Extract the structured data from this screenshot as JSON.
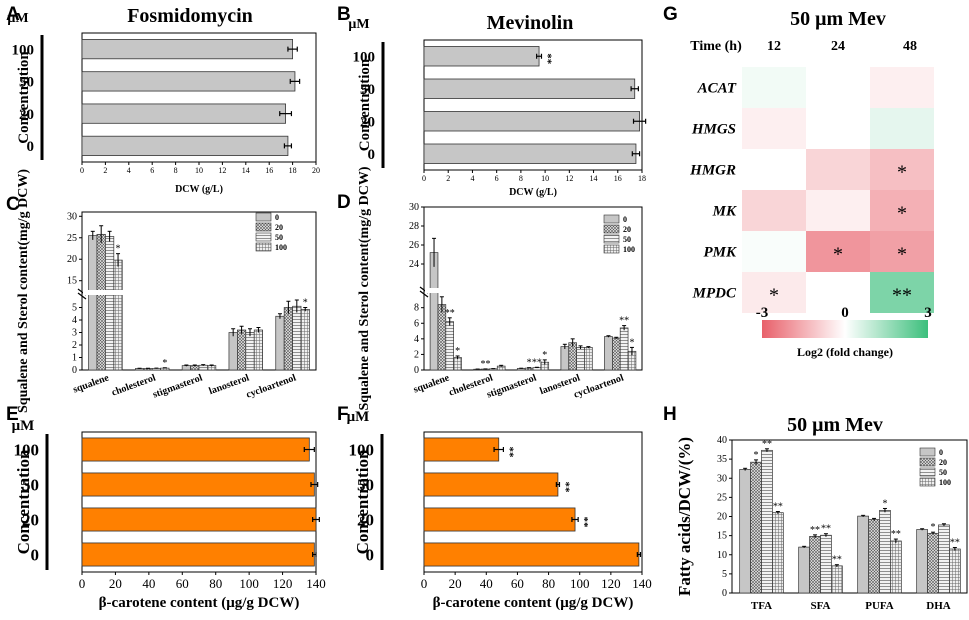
{
  "chart_data": [
    {
      "id": "A",
      "type": "bar",
      "orientation": "horizontal",
      "title": "Fosmidomycin",
      "unit_label": "μM",
      "ylabel": "Concentration",
      "xlabel": "DCW (g/L)",
      "xlim": [
        0,
        20
      ],
      "xticks": [
        "0",
        "2",
        "4",
        "6",
        "8",
        "10",
        "12",
        "14",
        "16",
        "18",
        "20"
      ],
      "categories": [
        "100",
        "50",
        "20",
        "0"
      ],
      "values": [
        18.0,
        18.2,
        17.4,
        17.6
      ],
      "errors": [
        0.4,
        0.4,
        0.5,
        0.3
      ],
      "significance": [
        "",
        "",
        "",
        ""
      ],
      "bar_color": "#c6c6c6"
    },
    {
      "id": "B",
      "type": "bar",
      "orientation": "horizontal",
      "title": "Mevinolin",
      "unit_label": "μM",
      "ylabel": "Concentration",
      "xlabel": "DCW (g/L)",
      "xlim": [
        0,
        18
      ],
      "xticks": [
        "0",
        "2",
        "4",
        "6",
        "8",
        "10",
        "12",
        "14",
        "16",
        "18"
      ],
      "categories": [
        "100",
        "50",
        "20",
        "0"
      ],
      "values": [
        9.5,
        17.4,
        17.8,
        17.5
      ],
      "errors": [
        0.2,
        0.3,
        0.5,
        0.3
      ],
      "significance": [
        "**",
        "",
        "",
        ""
      ],
      "bar_color": "#c6c6c6"
    },
    {
      "id": "C",
      "type": "bar",
      "orientation": "vertical",
      "y_break": true,
      "ylabel": "Squalene and Sterol content(mg/g DCW)",
      "upper_yticks": [
        "15",
        "20",
        "25",
        "30"
      ],
      "lower_yticks": [
        "0",
        "1",
        "2",
        "3",
        "4",
        "5"
      ],
      "categories": [
        "squalene",
        "cholesterol",
        "stigmasterol",
        "lanosterol",
        "cycloartenol"
      ],
      "legend": [
        "0",
        "20",
        "50",
        "100"
      ],
      "series": [
        {
          "name": "0",
          "values": [
            25.5,
            0.12,
            0.35,
            3.0,
            4.3
          ],
          "errors": [
            1.0,
            0.02,
            0.05,
            0.3,
            0.2
          ],
          "sig": [
            "",
            "",
            "",
            "",
            ""
          ]
        },
        {
          "name": "20",
          "values": [
            25.8,
            0.12,
            0.35,
            3.2,
            5.0
          ],
          "errors": [
            2.0,
            0.02,
            0.05,
            0.3,
            0.5
          ],
          "sig": [
            "",
            "",
            "",
            "",
            ""
          ]
        },
        {
          "name": "50",
          "values": [
            25.3,
            0.13,
            0.38,
            3.0,
            5.1
          ],
          "errors": [
            1.2,
            0.02,
            0.05,
            0.3,
            0.5
          ],
          "sig": [
            "",
            "",
            "",
            "",
            ""
          ]
        },
        {
          "name": "100",
          "values": [
            19.8,
            0.15,
            0.35,
            3.2,
            4.85
          ],
          "errors": [
            1.5,
            0.03,
            0.05,
            0.2,
            0.15
          ],
          "sig": [
            "*",
            "*",
            "",
            "",
            "*"
          ]
        }
      ]
    },
    {
      "id": "D",
      "type": "bar",
      "orientation": "vertical",
      "y_break": true,
      "ylabel": "Squalene and Sterol content(mg/g DCW)",
      "upper_yticks": [
        "24",
        "26",
        "28",
        "30"
      ],
      "lower_yticks": [
        "0",
        "2",
        "4",
        "6",
        "8"
      ],
      "categories": [
        "squalene",
        "cholesterol",
        "stigmasterol",
        "lanosterol",
        "cycloartenol"
      ],
      "legend": [
        "0",
        "20",
        "50",
        "100"
      ],
      "series": [
        {
          "name": "0",
          "values": [
            25.2,
            0.1,
            0.2,
            3.0,
            4.3
          ],
          "errors": [
            1.5,
            0.02,
            0.03,
            0.3,
            0.1
          ],
          "sig": [
            "",
            "",
            "",
            "",
            ""
          ]
        },
        {
          "name": "20",
          "values": [
            8.4,
            0.12,
            0.25,
            3.5,
            4.1
          ],
          "errors": [
            1.0,
            0.02,
            0.05,
            0.5,
            0.1
          ],
          "sig": [
            "**",
            "**",
            "*",
            "",
            ""
          ]
        },
        {
          "name": "50",
          "values": [
            6.2,
            0.15,
            0.3,
            2.9,
            5.4
          ],
          "errors": [
            0.5,
            0.03,
            0.05,
            0.2,
            0.3
          ],
          "sig": [
            "**",
            "",
            "**",
            "",
            "**"
          ]
        },
        {
          "name": "100",
          "values": [
            1.6,
            0.5,
            1.0,
            2.9,
            2.4
          ],
          "errors": [
            0.2,
            0.1,
            0.3,
            0.1,
            0.5
          ],
          "sig": [
            "*",
            "",
            "*",
            "",
            "*"
          ]
        }
      ]
    },
    {
      "id": "E",
      "type": "bar",
      "orientation": "horizontal",
      "unit_label": "μM",
      "ylabel": "Concentration",
      "xlabel": "β-carotene content (μg/g DCW)",
      "xlim": [
        0,
        140
      ],
      "xticks": [
        "0",
        "20",
        "40",
        "60",
        "80",
        "100",
        "120",
        "140"
      ],
      "categories": [
        "100",
        "50",
        "20",
        "0"
      ],
      "values": [
        136,
        139,
        140,
        139
      ],
      "errors": [
        3,
        2,
        2,
        1
      ],
      "significance": [
        "",
        "",
        "",
        ""
      ],
      "bar_color": "#ff8000"
    },
    {
      "id": "F",
      "type": "bar",
      "orientation": "horizontal",
      "unit_label": "μM",
      "ylabel": "Concentration",
      "xlabel": "β-carotene content (μg/g DCW)",
      "xlim": [
        0,
        140
      ],
      "xticks": [
        "0",
        "20",
        "40",
        "60",
        "80",
        "100",
        "120",
        "140"
      ],
      "categories": [
        "100",
        "50",
        "20",
        "0"
      ],
      "values": [
        48,
        86,
        97,
        138
      ],
      "errors": [
        3,
        1,
        2,
        1
      ],
      "significance": [
        "**",
        "**",
        "**",
        ""
      ],
      "bar_color": "#ff8000"
    },
    {
      "id": "G",
      "type": "heatmap",
      "title": "50 μm Mev",
      "x_title": "Time (h)",
      "columns": [
        "12",
        "24",
        "48"
      ],
      "rows": [
        "ACAT",
        "HMGS",
        "HMGR",
        "MK",
        "PMK",
        "MPDC"
      ],
      "values": [
        [
          0.2,
          0.0,
          -0.3
        ],
        [
          -0.3,
          0.0,
          0.4
        ],
        [
          0.0,
          -0.8,
          -1.2
        ],
        [
          -0.8,
          -0.3,
          -1.5
        ],
        [
          0.1,
          -2.0,
          -1.8
        ],
        [
          -0.4,
          0.0,
          2.0
        ]
      ],
      "significance": [
        [
          "",
          "",
          ""
        ],
        [
          "",
          "",
          ""
        ],
        [
          "",
          "",
          "*"
        ],
        [
          "",
          "",
          "*"
        ],
        [
          "",
          "*",
          "*"
        ],
        [
          "*",
          "",
          "**"
        ]
      ],
      "colorbar": {
        "min": -3,
        "mid": 0,
        "max": 3,
        "min_label": "-3",
        "mid_label": "0",
        "max_label": "3",
        "label": "Log2 (fold change)",
        "low_color": "#e8606a",
        "high_color": "#3cbf7c"
      }
    },
    {
      "id": "H",
      "type": "bar",
      "orientation": "vertical",
      "title": "50 μm Mev",
      "ylabel": "Fatty acids/DCW/(%)",
      "ylim": [
        0,
        40
      ],
      "yticks": [
        "0",
        "5",
        "10",
        "15",
        "20",
        "25",
        "30",
        "35",
        "40"
      ],
      "categories": [
        "TFA",
        "SFA",
        "PUFA",
        "DHA"
      ],
      "legend": [
        "0",
        "20",
        "50",
        "100"
      ],
      "series": [
        {
          "name": "0",
          "values": [
            32.3,
            12.0,
            20.1,
            16.6
          ],
          "errors": [
            0.3,
            0.2,
            0.2,
            0.2
          ],
          "sig": [
            "",
            "",
            "",
            ""
          ]
        },
        {
          "name": "20",
          "values": [
            34.2,
            14.8,
            19.2,
            15.6
          ],
          "errors": [
            0.6,
            0.4,
            0.3,
            0.3
          ],
          "sig": [
            "*",
            "**",
            "",
            "*"
          ]
        },
        {
          "name": "50",
          "values": [
            37.3,
            15.1,
            21.6,
            17.8
          ],
          "errors": [
            0.4,
            0.4,
            0.5,
            0.3
          ],
          "sig": [
            "**",
            "**",
            "*",
            ""
          ]
        },
        {
          "name": "100",
          "values": [
            21.0,
            7.1,
            13.6,
            11.5
          ],
          "errors": [
            0.3,
            0.3,
            0.5,
            0.4
          ],
          "sig": [
            "**",
            "**",
            "**",
            "**"
          ]
        }
      ]
    }
  ],
  "panel_letters": [
    "A",
    "B",
    "C",
    "D",
    "E",
    "F",
    "G",
    "H"
  ],
  "colors": {
    "gray_bar": "#c6c6c6",
    "orange_bar": "#ff8000"
  }
}
